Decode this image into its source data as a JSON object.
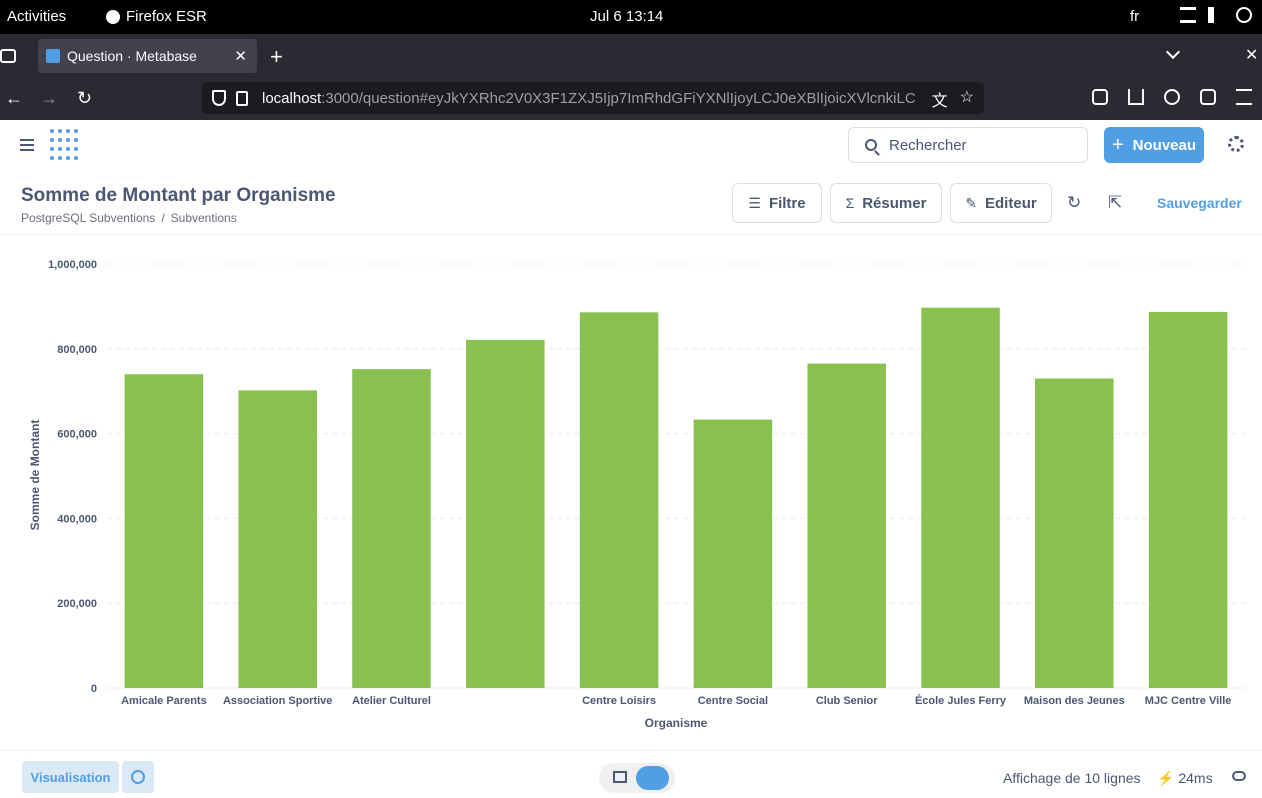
{
  "system": {
    "activities": "Activities",
    "app_name": "Firefox ESR",
    "clock": "Jul 6  13:14",
    "lang": "fr"
  },
  "browser": {
    "tab_title": "Question · Metabase",
    "url_host": "localhost",
    "url_rest": ":3000/question#eyJkYXRhc2V0X3F1ZXJ5Ijp7ImRhdGFiYXNlIjoyLCJ0eXBlIjoicXVlcnkiLC"
  },
  "header": {
    "search_placeholder": "Rechercher",
    "new_label": "Nouveau"
  },
  "question": {
    "title": "Somme de Montant par Organisme",
    "breadcrumb": [
      "PostgreSQL Subventions",
      "/",
      "Subventions"
    ],
    "filter_label": "Filtre",
    "summarize_label": "Résumer",
    "editor_label": "Editeur",
    "save_label": "Sauvegarder"
  },
  "colors": {
    "bar": "#89c050",
    "accent": "#509ee3",
    "text": "#4c5773"
  },
  "chart_data": {
    "type": "bar",
    "categories": [
      "Amicale Parents",
      "Association Sportive",
      "Atelier Culturel",
      "",
      "Centre Loisirs",
      "Centre Social",
      "Club Senior",
      "École Jules Ferry",
      "Maison des Jeunes",
      "MJC Centre Ville"
    ],
    "values": [
      740000,
      702000,
      752000,
      821000,
      886000,
      633000,
      765000,
      897000,
      730000,
      887000
    ],
    "xlabel": "Organisme",
    "ylabel": "Somme de Montant",
    "ylim": [
      0,
      1000000
    ],
    "yticks": [
      "0",
      "200,000",
      "400,000",
      "600,000",
      "800,000",
      "1,000,000"
    ],
    "grid": true
  },
  "footer": {
    "viz_label": "Visualisation",
    "rows_label": "Affichage de 10 lignes",
    "timing": "24ms"
  }
}
